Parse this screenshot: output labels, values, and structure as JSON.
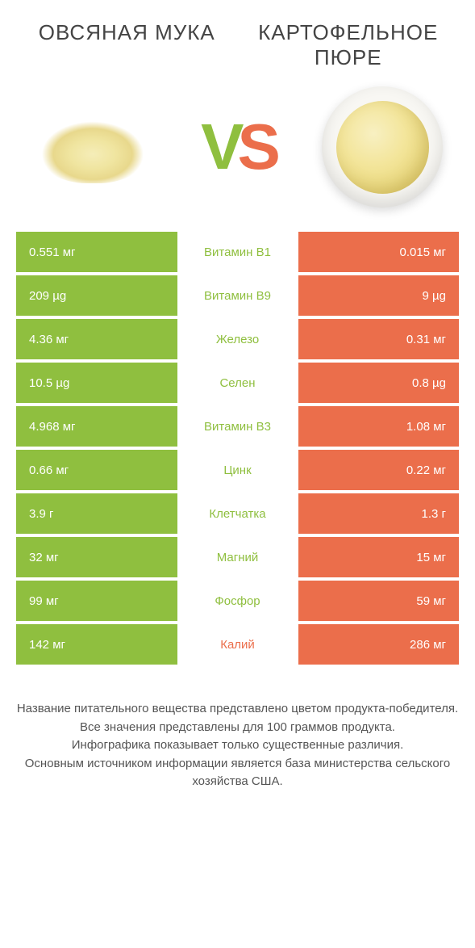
{
  "header": {
    "left_title": "ОВСЯНАЯ МУКА",
    "right_title": "КАРТОФЕЛЬНОЕ ПЮРЕ"
  },
  "vs": {
    "v": "V",
    "s": "S"
  },
  "colors": {
    "green": "#8fbf3f",
    "orange": "#eb6e4b",
    "white": "#ffffff"
  },
  "rows": [
    {
      "left": "0.551 мг",
      "mid": "Витамин B1",
      "right": "0.015 мг",
      "winner": "left"
    },
    {
      "left": "209 µg",
      "mid": "Витамин B9",
      "right": "9 µg",
      "winner": "left"
    },
    {
      "left": "4.36 мг",
      "mid": "Железо",
      "right": "0.31 мг",
      "winner": "left"
    },
    {
      "left": "10.5 µg",
      "mid": "Селен",
      "right": "0.8 µg",
      "winner": "left"
    },
    {
      "left": "4.968 мг",
      "mid": "Витамин B3",
      "right": "1.08 мг",
      "winner": "left"
    },
    {
      "left": "0.66 мг",
      "mid": "Цинк",
      "right": "0.22 мг",
      "winner": "left"
    },
    {
      "left": "3.9 г",
      "mid": "Клетчатка",
      "right": "1.3 г",
      "winner": "left"
    },
    {
      "left": "32 мг",
      "mid": "Магний",
      "right": "15 мг",
      "winner": "left"
    },
    {
      "left": "99 мг",
      "mid": "Фосфор",
      "right": "59 мг",
      "winner": "left"
    },
    {
      "left": "142 мг",
      "mid": "Калий",
      "right": "286 мг",
      "winner": "right"
    }
  ],
  "footer": {
    "line1": "Название питательного вещества представлено цветом продукта-победителя.",
    "line2": "Все значения представлены для 100 граммов продукта.",
    "line3": "Инфографика показывает только существенные различия.",
    "line4": "Основным источником информации является база министерства сельского хозяйства США."
  }
}
